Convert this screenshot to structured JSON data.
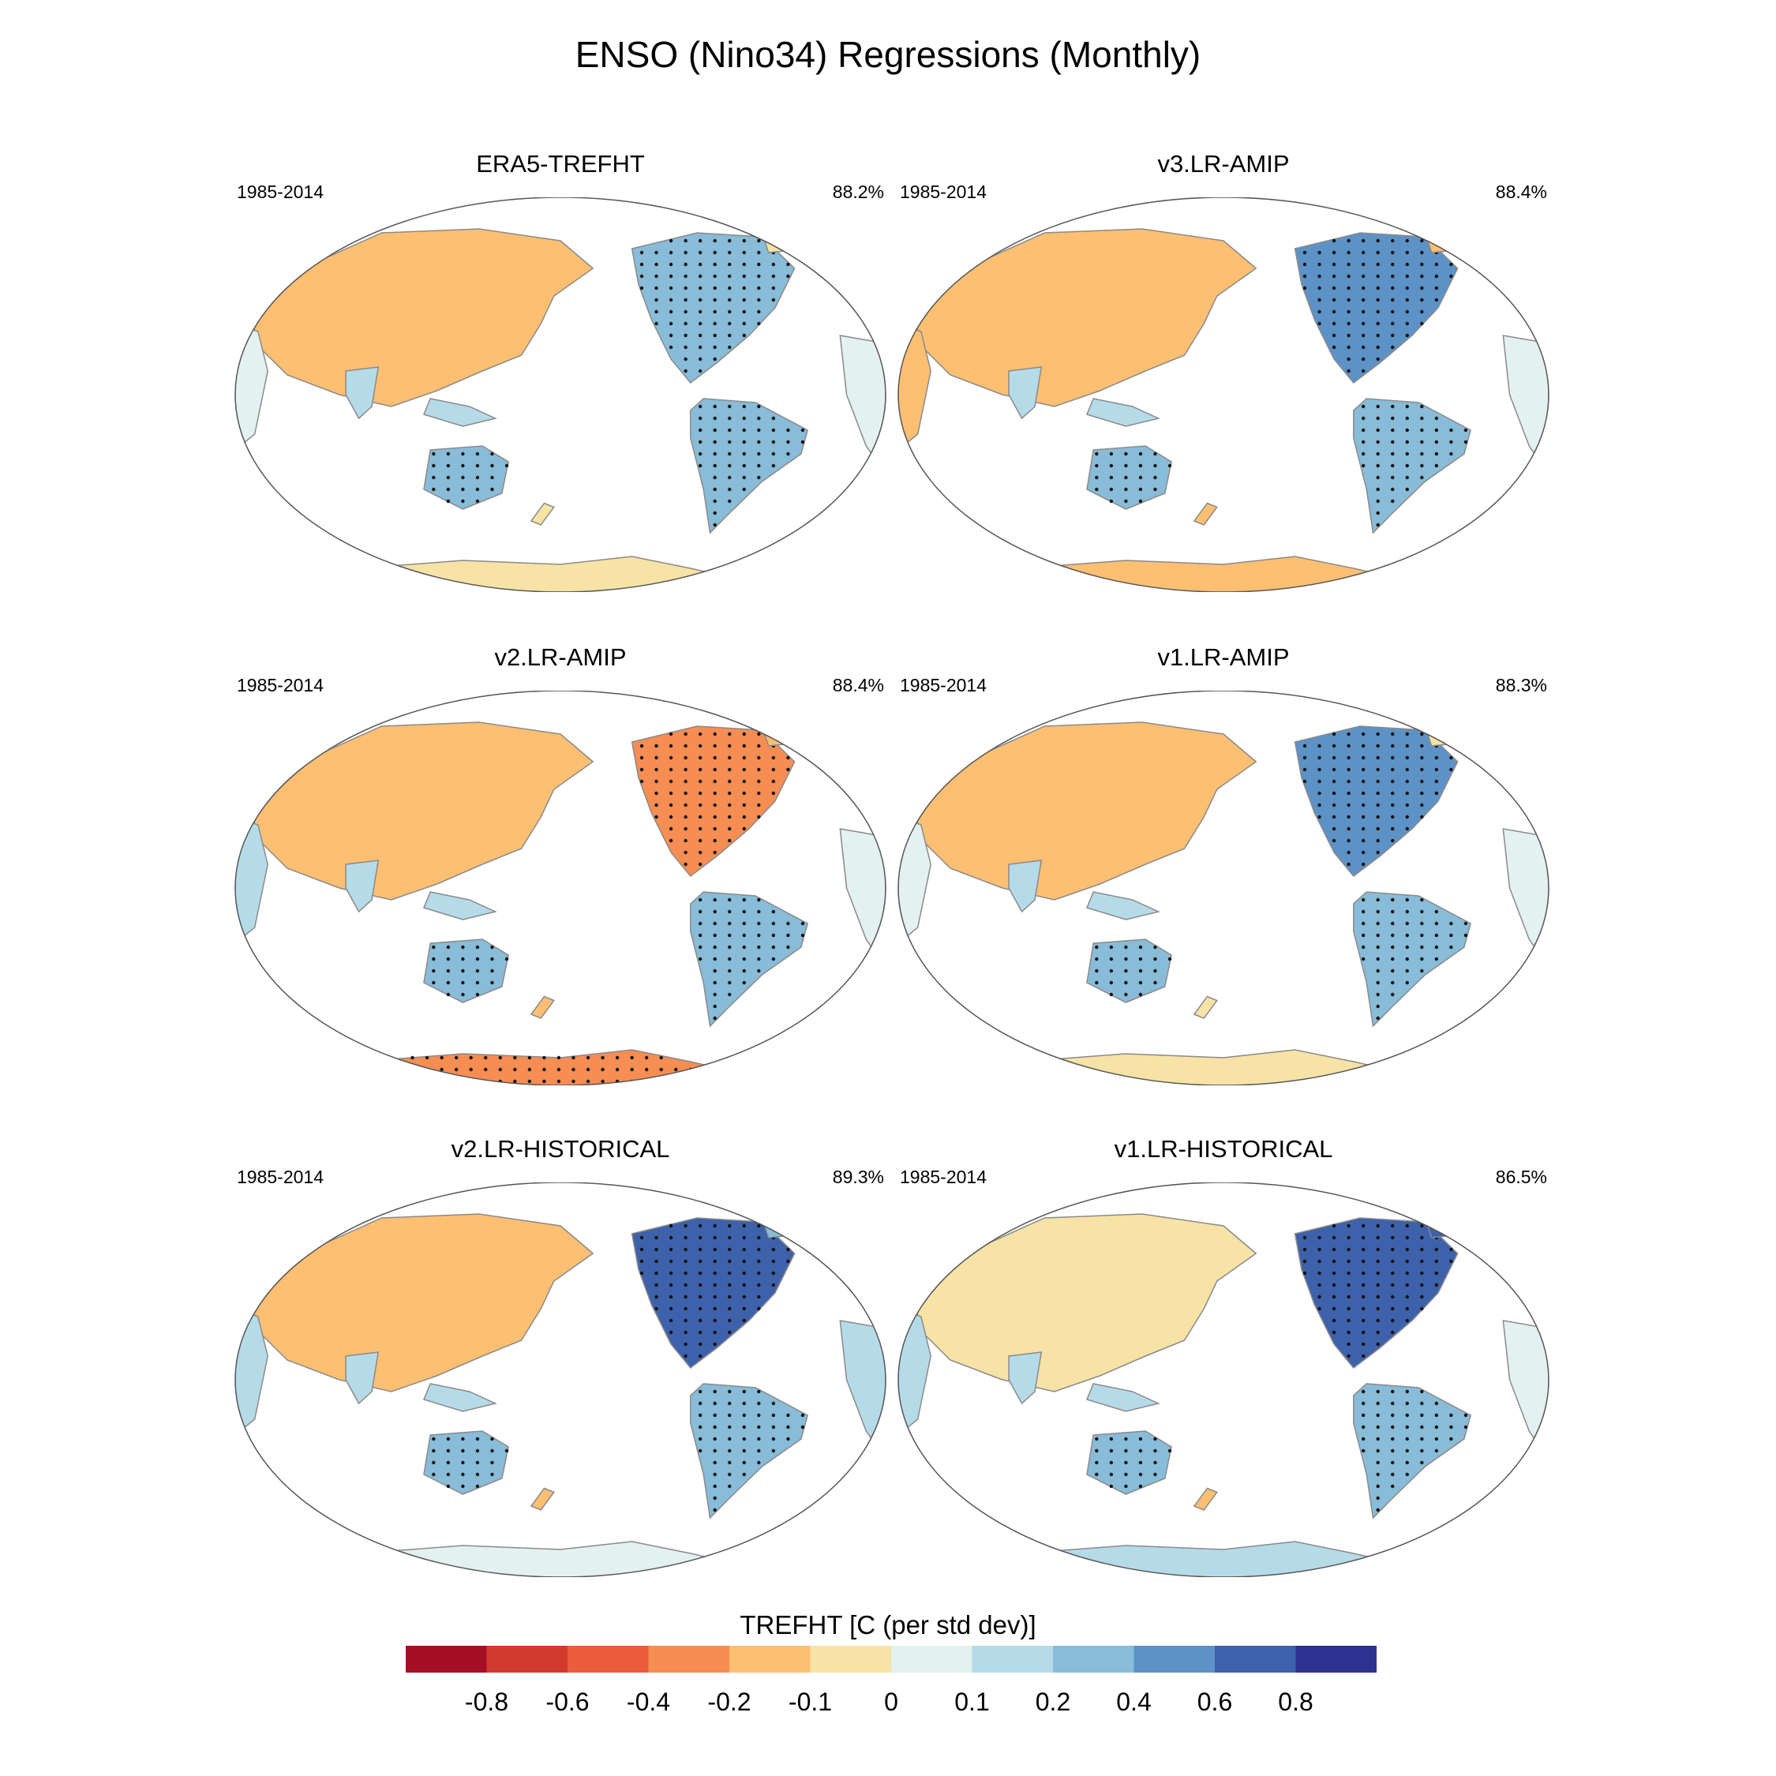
{
  "title": "ENSO (Nino34) Regressions (Monthly)",
  "colorbar": {
    "title": "TREFHT [C (per std dev)]",
    "tick_labels": [
      "-0.8",
      "-0.6",
      "-0.4",
      "-0.2",
      "-0.1",
      "0",
      "0.1",
      "0.2",
      "0.4",
      "0.6",
      "0.8"
    ],
    "colors": [
      "#a50f25",
      "#d33a2e",
      "#ec5c3c",
      "#f68d52",
      "#fdbf72",
      "#f6e3a5",
      "#e3f1f0",
      "#b5dbe9",
      "#88bcd8",
      "#5d92c6",
      "#3d61ab",
      "#2d3292"
    ]
  },
  "chart_data": [
    {
      "type": "heatmap",
      "title": "ERA5-TREFHT",
      "period": "1985-2014",
      "pattern_pct": "88.2%"
    },
    {
      "type": "heatmap",
      "title": "v3.LR-AMIP",
      "period": "1985-2014",
      "pattern_pct": "88.4%"
    },
    {
      "type": "heatmap",
      "title": "v2.LR-AMIP",
      "period": "1985-2014",
      "pattern_pct": "88.4%"
    },
    {
      "type": "heatmap",
      "title": "v1.LR-AMIP",
      "period": "1985-2014",
      "pattern_pct": "88.3%"
    },
    {
      "type": "heatmap",
      "title": "v2.LR-HISTORICAL",
      "period": "1985-2014",
      "pattern_pct": "89.3%"
    },
    {
      "type": "heatmap",
      "title": "v1.LR-HISTORICAL",
      "period": "1985-2014",
      "pattern_pct": "86.5%"
    }
  ]
}
